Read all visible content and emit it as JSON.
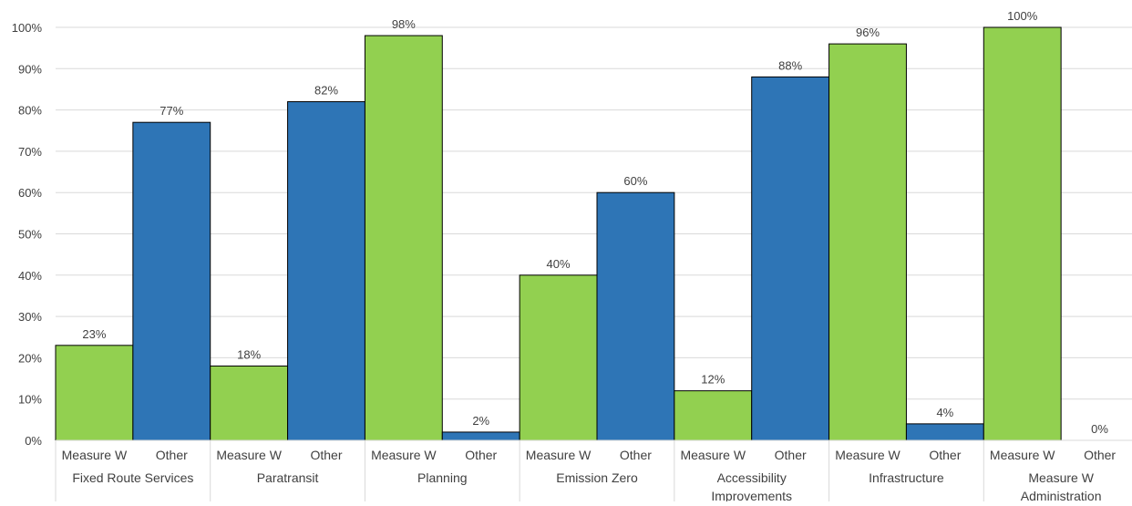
{
  "chart_data": {
    "type": "bar",
    "ylim": [
      0,
      100
    ],
    "y_ticks": [
      "0%",
      "10%",
      "20%",
      "30%",
      "40%",
      "50%",
      "60%",
      "70%",
      "80%",
      "90%",
      "100%"
    ],
    "grid": true,
    "legend": "none",
    "groups": [
      {
        "label_lines": [
          "Fixed Route Services"
        ],
        "bars": [
          {
            "category": "Measure W",
            "value": 23,
            "label": "23%",
            "color": "#92d050"
          },
          {
            "category": "Other",
            "value": 77,
            "label": "77%",
            "color": "#2e75b6"
          }
        ]
      },
      {
        "label_lines": [
          "Paratransit"
        ],
        "bars": [
          {
            "category": "Measure W",
            "value": 18,
            "label": "18%",
            "color": "#92d050"
          },
          {
            "category": "Other",
            "value": 82,
            "label": "82%",
            "color": "#2e75b6"
          }
        ]
      },
      {
        "label_lines": [
          "Planning"
        ],
        "bars": [
          {
            "category": "Measure W",
            "value": 98,
            "label": "98%",
            "color": "#92d050"
          },
          {
            "category": "Other",
            "value": 2,
            "label": "2%",
            "color": "#2e75b6"
          }
        ]
      },
      {
        "label_lines": [
          "Emission Zero"
        ],
        "bars": [
          {
            "category": "Measure W",
            "value": 40,
            "label": "40%",
            "color": "#92d050"
          },
          {
            "category": "Other",
            "value": 60,
            "label": "60%",
            "color": "#2e75b6"
          }
        ]
      },
      {
        "label_lines": [
          "Accessibility",
          "Improvements"
        ],
        "bars": [
          {
            "category": "Measure W",
            "value": 12,
            "label": "12%",
            "color": "#92d050"
          },
          {
            "category": "Other",
            "value": 88,
            "label": "88%",
            "color": "#2e75b6"
          }
        ]
      },
      {
        "label_lines": [
          "Infrastructure"
        ],
        "bars": [
          {
            "category": "Measure W",
            "value": 96,
            "label": "96%",
            "color": "#92d050"
          },
          {
            "category": "Other",
            "value": 4,
            "label": "4%",
            "color": "#2e75b6"
          }
        ]
      },
      {
        "label_lines": [
          "Measure W",
          "Administration"
        ],
        "bars": [
          {
            "category": "Measure W",
            "value": 100,
            "label": "100%",
            "color": "#92d050"
          },
          {
            "category": "Other",
            "value": 0,
            "label": "0%",
            "color": "#2e75b6"
          }
        ]
      }
    ]
  }
}
